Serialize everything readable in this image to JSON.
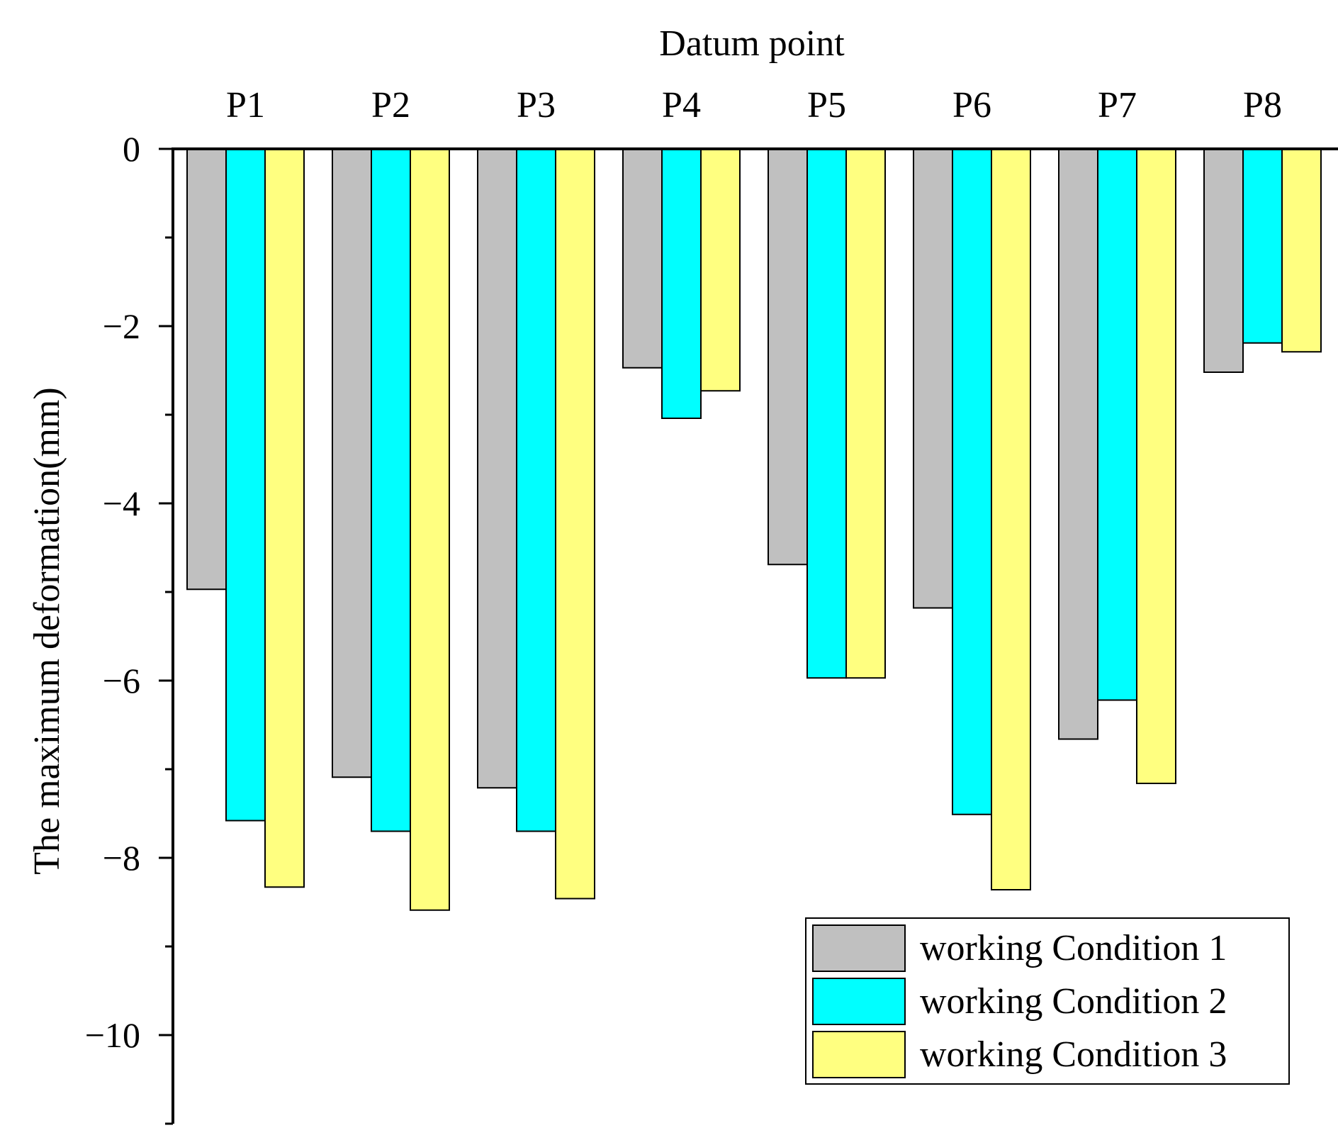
{
  "chart_data": {
    "type": "bar",
    "title": "Datum point",
    "xlabel": "Datum point",
    "ylabel": "The maximum deformation(mm)",
    "categories": [
      "P1",
      "P2",
      "P3",
      "P4",
      "P5",
      "P6",
      "P7",
      "P8"
    ],
    "ylim": [
      -11,
      0
    ],
    "yticks": [
      0,
      -2,
      -4,
      -6,
      -8,
      -10
    ],
    "ytick_labels": [
      "0",
      "−2",
      "−4",
      "−6",
      "−8",
      "−10"
    ],
    "legend_position": "bottom-right",
    "series": [
      {
        "name": "working Condition 1",
        "color": "#c0c0c0",
        "values": [
          -4.97,
          -7.09,
          -7.21,
          -2.47,
          -4.69,
          -5.18,
          -6.66,
          -2.52
        ]
      },
      {
        "name": "working Condition 2",
        "color": "#00ffff",
        "values": [
          -7.58,
          -7.7,
          -7.7,
          -3.04,
          -5.97,
          -7.51,
          -6.22,
          -2.19
        ]
      },
      {
        "name": "working Condition 3",
        "color": "#ffff80",
        "values": [
          -8.33,
          -8.59,
          -8.46,
          -2.73,
          -5.97,
          -8.36,
          -7.16,
          -2.29
        ]
      }
    ]
  }
}
